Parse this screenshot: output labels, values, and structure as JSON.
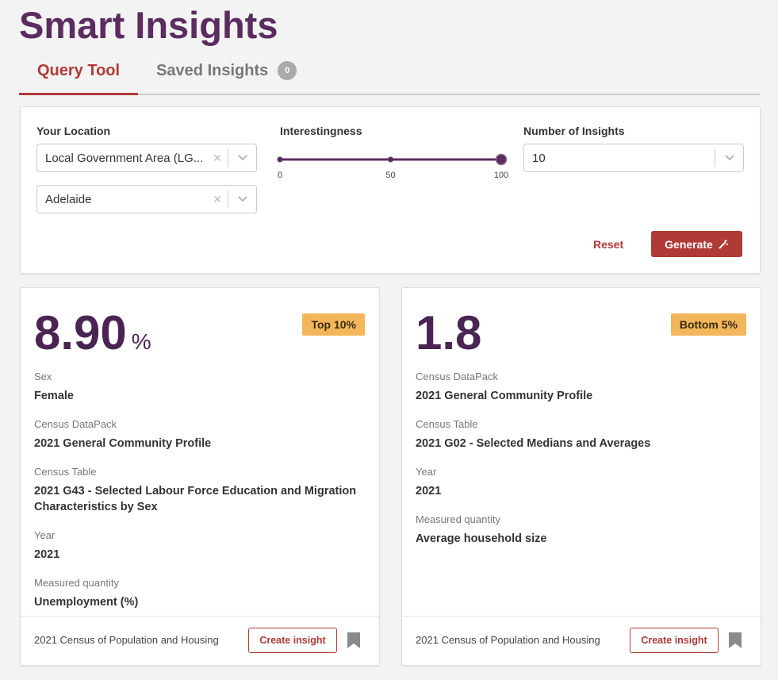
{
  "header": {
    "title": "Smart Insights"
  },
  "tabs": {
    "items": [
      {
        "label": "Query Tool"
      },
      {
        "label": "Saved Insights",
        "count": 0
      }
    ],
    "active": 0
  },
  "query": {
    "location": {
      "label": "Your Location",
      "selects": [
        "Local Government Area (LG...",
        "Adelaide"
      ]
    },
    "interestingness": {
      "label": "Interestingness",
      "ticks": [
        0,
        50,
        100
      ],
      "value": 100
    },
    "number_of_insights": {
      "label": "Number of Insights",
      "value": 10
    },
    "reset": "Reset",
    "generate": "Generate"
  },
  "insights": [
    {
      "value": "8.90",
      "unit": "%",
      "rank": "Top 10%",
      "fields": [
        {
          "label": "Sex",
          "value": "Female"
        },
        {
          "label": "Census DataPack",
          "value": "2021 General Community Profile"
        },
        {
          "label": "Census Table",
          "value": "2021 G43 - Selected Labour Force Education and Migration Characteristics by Sex"
        },
        {
          "label": "Year",
          "value": "2021"
        },
        {
          "label": "Measured quantity",
          "value": "Unemployment (%)"
        }
      ],
      "source": "2021 Census of Population and Housing",
      "action": "Create insight"
    },
    {
      "value": "1.8",
      "rank": "Bottom 5%",
      "fields": [
        {
          "label": "Census DataPack",
          "value": "2021 General Community Profile"
        },
        {
          "label": "Census Table",
          "value": "2021 G02 - Selected Medians and Averages"
        },
        {
          "label": "Year",
          "value": "2021"
        },
        {
          "label": "Measured quantity",
          "value": "Average household size"
        }
      ],
      "source": "2021 Census of Population and Housing",
      "action": "Create insight"
    }
  ]
}
